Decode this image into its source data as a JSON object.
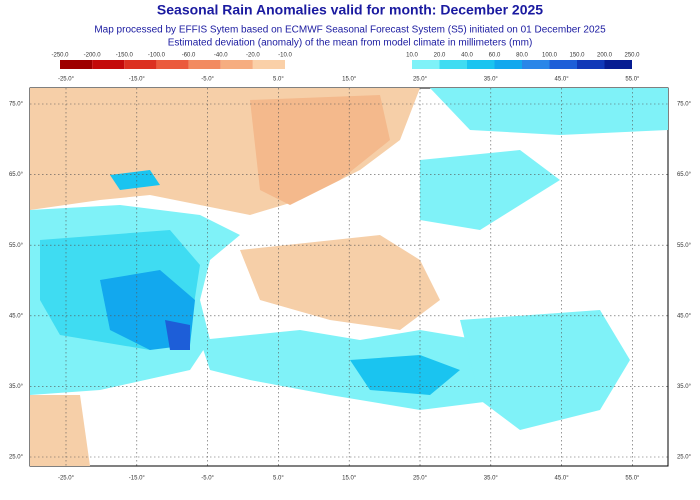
{
  "header": {
    "title": "Seasonal Rain Anomalies valid for month: December 2025",
    "subtitle_lines": [
      "Map processed by EFFIS Sytem based on ECMWF Seasonal Forecast System (S5) initiated on 01 December 2025",
      "Estimated deviation (anomaly) of the mean from model climate in millimeters (mm)"
    ]
  },
  "legend": {
    "negative": {
      "labels": [
        "-250.0",
        "-200.0",
        "-150.0",
        "-100.0",
        "-60.0",
        "-40.0",
        "-20.0",
        "-10.0"
      ],
      "colors": [
        "#9e0000",
        "#c40a0a",
        "#dc3020",
        "#eb5a3c",
        "#f28a60",
        "#f6ad80",
        "#fad0a8"
      ]
    },
    "positive": {
      "labels": [
        "10.0",
        "20.0",
        "40.0",
        "60.0",
        "80.0",
        "100.0",
        "150.0",
        "200.0",
        "250.0"
      ],
      "colors": [
        "#7ff2f8",
        "#3fdcf2",
        "#1ac4f0",
        "#12a8ee",
        "#2a86e8",
        "#1d5ed8",
        "#1038b8",
        "#061c92"
      ]
    }
  },
  "map": {
    "lon_labels": [
      "-25.0°",
      "-15.0°",
      "-5.0°",
      "5.0°",
      "15.0°",
      "25.0°",
      "35.0°",
      "45.0°",
      "55.0°"
    ],
    "lat_labels": [
      "75.0°",
      "65.0°",
      "55.0°",
      "45.0°",
      "35.0°",
      "25.0°"
    ]
  }
}
